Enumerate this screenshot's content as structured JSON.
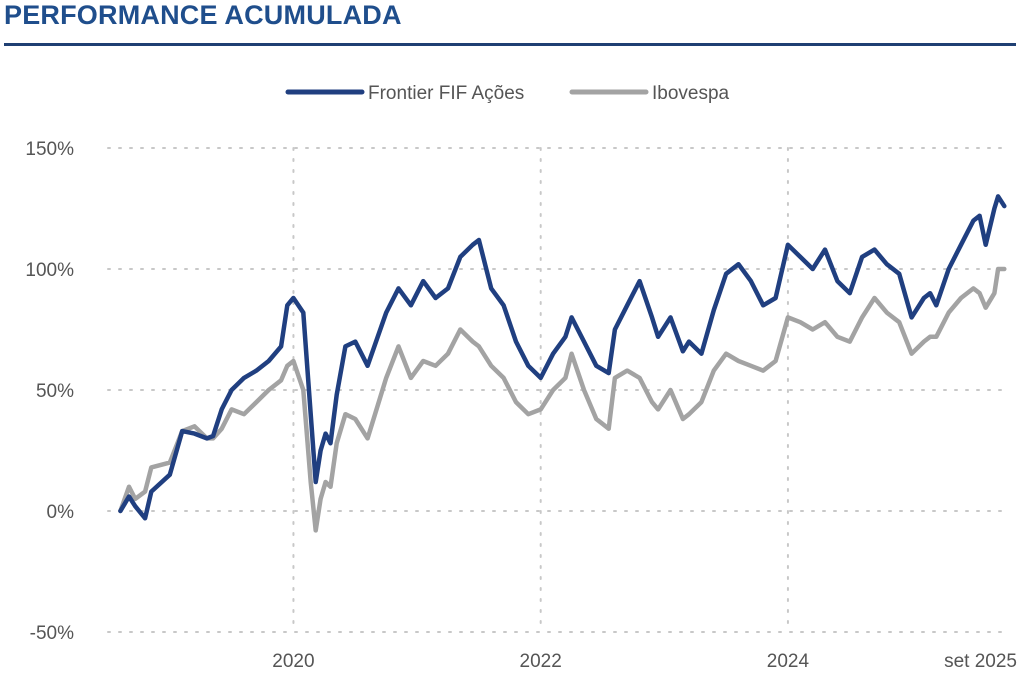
{
  "header": {
    "title": "PERFORMANCE ACUMULADA"
  },
  "colors": {
    "frontier": "#203f80",
    "ibovespa": "#a3a3a3",
    "title": "#1f4e8c",
    "rule": "#1f3f73",
    "grid": "#c8c8c8",
    "text": "#555555"
  },
  "chart_data": {
    "type": "line",
    "title": "",
    "xlabel": "",
    "ylabel": "",
    "legend_position": "top-center",
    "grid": true,
    "ylim": [
      -0.5,
      1.5
    ],
    "xlim": [
      2018.5,
      2025.78
    ],
    "y_ticks": [
      {
        "value": 1.5,
        "label": "150%"
      },
      {
        "value": 1.0,
        "label": "100%"
      },
      {
        "value": 0.5,
        "label": "50%"
      },
      {
        "value": 0.0,
        "label": "0%"
      },
      {
        "value": -0.5,
        "label": "-50%"
      }
    ],
    "x_ticks": [
      {
        "value": 2020.0,
        "label": "2020"
      },
      {
        "value": 2022.0,
        "label": "2022"
      },
      {
        "value": 2024.0,
        "label": "2024"
      },
      {
        "value": 2025.67,
        "label": "set 2025"
      }
    ],
    "series": [
      {
        "name": "Frontier FIF Ações",
        "x": [
          2018.6,
          2018.67,
          2018.72,
          2018.8,
          2018.85,
          2019.0,
          2019.1,
          2019.2,
          2019.3,
          2019.35,
          2019.42,
          2019.5,
          2019.6,
          2019.7,
          2019.8,
          2019.9,
          2019.95,
          2020.0,
          2020.08,
          2020.14,
          2020.18,
          2020.22,
          2020.26,
          2020.3,
          2020.35,
          2020.42,
          2020.5,
          2020.6,
          2020.75,
          2020.85,
          2020.95,
          2021.05,
          2021.15,
          2021.25,
          2021.35,
          2021.45,
          2021.5,
          2021.6,
          2021.7,
          2021.8,
          2021.9,
          2022.0,
          2022.1,
          2022.2,
          2022.25,
          2022.35,
          2022.45,
          2022.55,
          2022.6,
          2022.7,
          2022.8,
          2022.9,
          2022.95,
          2023.05,
          2023.15,
          2023.2,
          2023.3,
          2023.4,
          2023.5,
          2023.6,
          2023.7,
          2023.8,
          2023.9,
          2024.0,
          2024.1,
          2024.2,
          2024.3,
          2024.4,
          2024.5,
          2024.6,
          2024.7,
          2024.8,
          2024.9,
          2025.0,
          2025.1,
          2025.15,
          2025.2,
          2025.3,
          2025.4,
          2025.5,
          2025.55,
          2025.6,
          2025.67,
          2025.7,
          2025.75
        ],
        "values": [
          0.0,
          0.06,
          0.02,
          -0.03,
          0.08,
          0.15,
          0.33,
          0.32,
          0.3,
          0.31,
          0.42,
          0.5,
          0.55,
          0.58,
          0.62,
          0.68,
          0.85,
          0.88,
          0.82,
          0.4,
          0.12,
          0.25,
          0.32,
          0.28,
          0.48,
          0.68,
          0.7,
          0.6,
          0.82,
          0.92,
          0.85,
          0.95,
          0.88,
          0.92,
          1.05,
          1.1,
          1.12,
          0.92,
          0.85,
          0.7,
          0.6,
          0.55,
          0.65,
          0.72,
          0.8,
          0.7,
          0.6,
          0.57,
          0.75,
          0.85,
          0.95,
          0.8,
          0.72,
          0.8,
          0.66,
          0.7,
          0.65,
          0.83,
          0.98,
          1.02,
          0.95,
          0.85,
          0.88,
          1.1,
          1.05,
          1.0,
          1.08,
          0.95,
          0.9,
          1.05,
          1.08,
          1.02,
          0.98,
          0.8,
          0.88,
          0.9,
          0.85,
          1.0,
          1.1,
          1.2,
          1.22,
          1.1,
          1.25,
          1.3,
          1.26
        ]
      },
      {
        "name": "Ibovespa",
        "x": [
          2018.6,
          2018.67,
          2018.72,
          2018.8,
          2018.85,
          2019.0,
          2019.1,
          2019.2,
          2019.3,
          2019.35,
          2019.42,
          2019.5,
          2019.6,
          2019.7,
          2019.8,
          2019.9,
          2019.95,
          2020.0,
          2020.08,
          2020.14,
          2020.18,
          2020.22,
          2020.26,
          2020.3,
          2020.35,
          2020.42,
          2020.5,
          2020.6,
          2020.75,
          2020.85,
          2020.95,
          2021.05,
          2021.15,
          2021.25,
          2021.35,
          2021.45,
          2021.5,
          2021.6,
          2021.7,
          2021.8,
          2021.9,
          2022.0,
          2022.1,
          2022.2,
          2022.25,
          2022.35,
          2022.45,
          2022.55,
          2022.6,
          2022.7,
          2022.8,
          2022.9,
          2022.95,
          2023.05,
          2023.15,
          2023.2,
          2023.3,
          2023.4,
          2023.5,
          2023.6,
          2023.7,
          2023.8,
          2023.9,
          2024.0,
          2024.1,
          2024.2,
          2024.3,
          2024.4,
          2024.5,
          2024.6,
          2024.7,
          2024.8,
          2024.9,
          2025.0,
          2025.1,
          2025.15,
          2025.2,
          2025.3,
          2025.4,
          2025.5,
          2025.55,
          2025.6,
          2025.67,
          2025.7,
          2025.75
        ],
        "values": [
          0.0,
          0.1,
          0.05,
          0.08,
          0.18,
          0.2,
          0.33,
          0.35,
          0.3,
          0.3,
          0.34,
          0.42,
          0.4,
          0.45,
          0.5,
          0.54,
          0.6,
          0.62,
          0.5,
          0.12,
          -0.08,
          0.05,
          0.12,
          0.1,
          0.28,
          0.4,
          0.38,
          0.3,
          0.55,
          0.68,
          0.55,
          0.62,
          0.6,
          0.65,
          0.75,
          0.7,
          0.68,
          0.6,
          0.55,
          0.45,
          0.4,
          0.42,
          0.5,
          0.55,
          0.65,
          0.5,
          0.38,
          0.34,
          0.55,
          0.58,
          0.55,
          0.45,
          0.42,
          0.5,
          0.38,
          0.4,
          0.45,
          0.58,
          0.65,
          0.62,
          0.6,
          0.58,
          0.62,
          0.8,
          0.78,
          0.75,
          0.78,
          0.72,
          0.7,
          0.8,
          0.88,
          0.82,
          0.78,
          0.65,
          0.7,
          0.72,
          0.72,
          0.82,
          0.88,
          0.92,
          0.9,
          0.84,
          0.9,
          1.0,
          1.0
        ]
      }
    ]
  }
}
